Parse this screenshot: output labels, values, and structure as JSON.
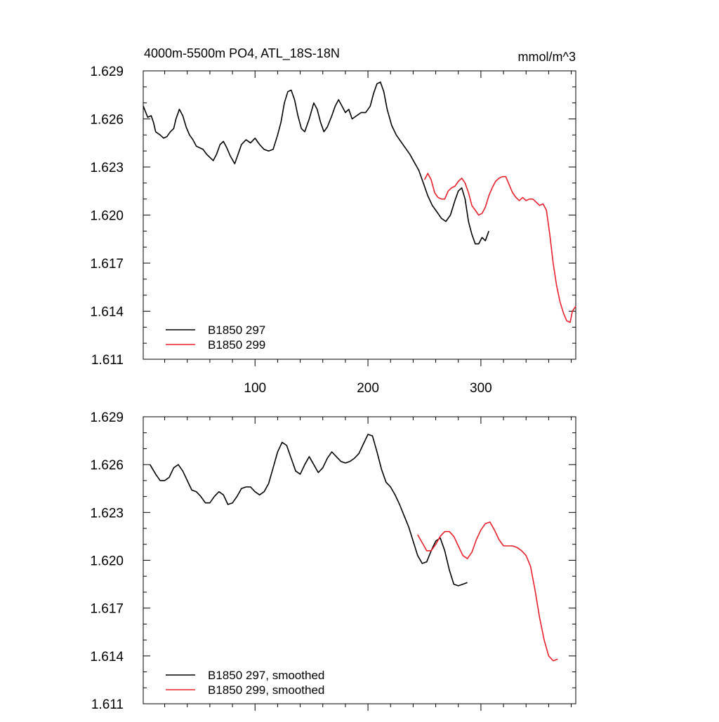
{
  "figure": {
    "title": "4000m-5500m PO4, ATL_18S-18N",
    "units": "mmol/m^3"
  },
  "chart_data": [
    {
      "type": "line",
      "title": "4000m-5500m PO4, ATL_18S-18N",
      "units": "mmol/m^3",
      "xlabel": "",
      "ylabel": "",
      "xlim": [
        1,
        384
      ],
      "ylim": [
        1.611,
        1.629
      ],
      "yticks": [
        1.611,
        1.614,
        1.617,
        1.62,
        1.623,
        1.626,
        1.629
      ],
      "ytick_labels": [
        "1.611",
        "1.614",
        "1.617",
        "1.620",
        "1.623",
        "1.626",
        "1.629"
      ],
      "xticks": [
        100,
        200,
        300
      ],
      "xtick_labels": [
        "100",
        "200",
        "300"
      ],
      "grid": false,
      "legend_position": "bottom-left",
      "series": [
        {
          "name": "B1850 297",
          "color": "#000000",
          "points": [
            [
              1,
              1.6268
            ],
            [
              5,
              1.6261
            ],
            [
              8,
              1.6262
            ],
            [
              10,
              1.6258
            ],
            [
              12,
              1.6252
            ],
            [
              14,
              1.6251
            ],
            [
              16,
              1.625
            ],
            [
              19,
              1.6248
            ],
            [
              22,
              1.6249
            ],
            [
              25,
              1.6252
            ],
            [
              28,
              1.6254
            ],
            [
              30,
              1.626
            ],
            [
              33,
              1.6266
            ],
            [
              36,
              1.6262
            ],
            [
              39,
              1.6255
            ],
            [
              42,
              1.625
            ],
            [
              45,
              1.6247
            ],
            [
              48,
              1.6243
            ],
            [
              51,
              1.6242
            ],
            [
              54,
              1.6241
            ],
            [
              57,
              1.6238
            ],
            [
              60,
              1.6236
            ],
            [
              63,
              1.6234
            ],
            [
              66,
              1.6238
            ],
            [
              69,
              1.6244
            ],
            [
              72,
              1.6246
            ],
            [
              75,
              1.6242
            ],
            [
              78,
              1.6237
            ],
            [
              82,
              1.6232
            ],
            [
              85,
              1.6238
            ],
            [
              88,
              1.6244
            ],
            [
              92,
              1.6247
            ],
            [
              96,
              1.6245
            ],
            [
              100,
              1.6248
            ],
            [
              104,
              1.6244
            ],
            [
              108,
              1.6241
            ],
            [
              112,
              1.624
            ],
            [
              116,
              1.6241
            ],
            [
              120,
              1.625
            ],
            [
              123,
              1.6258
            ],
            [
              126,
              1.627
            ],
            [
              129,
              1.6277
            ],
            [
              132,
              1.6278
            ],
            [
              135,
              1.6272
            ],
            [
              138,
              1.6262
            ],
            [
              141,
              1.6254
            ],
            [
              144,
              1.6252
            ],
            [
              148,
              1.626
            ],
            [
              152,
              1.627
            ],
            [
              155,
              1.6266
            ],
            [
              158,
              1.6258
            ],
            [
              161,
              1.6252
            ],
            [
              164,
              1.6255
            ],
            [
              168,
              1.6262
            ],
            [
              171,
              1.6268
            ],
            [
              174,
              1.6272
            ],
            [
              177,
              1.6268
            ],
            [
              180,
              1.6264
            ],
            [
              183,
              1.6266
            ],
            [
              186,
              1.626
            ],
            [
              190,
              1.6262
            ],
            [
              194,
              1.6264
            ],
            [
              198,
              1.6264
            ],
            [
              202,
              1.6268
            ],
            [
              205,
              1.6276
            ],
            [
              208,
              1.6282
            ],
            [
              211,
              1.6283
            ],
            [
              214,
              1.6277
            ],
            [
              217,
              1.6266
            ],
            [
              221,
              1.6256
            ],
            [
              225,
              1.625
            ],
            [
              229,
              1.6246
            ],
            [
              233,
              1.6242
            ],
            [
              237,
              1.6238
            ],
            [
              241,
              1.6233
            ],
            [
              245,
              1.6228
            ],
            [
              249,
              1.622
            ],
            [
              253,
              1.6212
            ],
            [
              257,
              1.6206
            ],
            [
              261,
              1.6202
            ],
            [
              265,
              1.6198
            ],
            [
              269,
              1.6196
            ],
            [
              273,
              1.62
            ],
            [
              277,
              1.6209
            ],
            [
              280,
              1.6215
            ],
            [
              283,
              1.6217
            ],
            [
              286,
              1.621
            ],
            [
              289,
              1.6196
            ],
            [
              292,
              1.6188
            ],
            [
              295,
              1.6182
            ],
            [
              298,
              1.6182
            ],
            [
              301,
              1.6186
            ],
            [
              304,
              1.6184
            ],
            [
              307,
              1.619
            ]
          ]
        },
        {
          "name": "B1850 299",
          "color": "#e8202a",
          "points": [
            [
              250,
              1.6222
            ],
            [
              253,
              1.6226
            ],
            [
              256,
              1.6222
            ],
            [
              259,
              1.6214
            ],
            [
              262,
              1.6211
            ],
            [
              265,
              1.621
            ],
            [
              268,
              1.621
            ],
            [
              271,
              1.6215
            ],
            [
              274,
              1.6217
            ],
            [
              277,
              1.6218
            ],
            [
              280,
              1.6221
            ],
            [
              283,
              1.6223
            ],
            [
              286,
              1.622
            ],
            [
              289,
              1.6214
            ],
            [
              292,
              1.6206
            ],
            [
              295,
              1.6203
            ],
            [
              298,
              1.62
            ],
            [
              301,
              1.6201
            ],
            [
              304,
              1.6205
            ],
            [
              307,
              1.6212
            ],
            [
              310,
              1.6217
            ],
            [
              313,
              1.6221
            ],
            [
              316,
              1.6223
            ],
            [
              319,
              1.6224
            ],
            [
              322,
              1.6224
            ],
            [
              325,
              1.6219
            ],
            [
              328,
              1.6214
            ],
            [
              331,
              1.6211
            ],
            [
              334,
              1.6209
            ],
            [
              337,
              1.6211
            ],
            [
              340,
              1.6209
            ],
            [
              343,
              1.621
            ],
            [
              346,
              1.621
            ],
            [
              349,
              1.6208
            ],
            [
              352,
              1.6206
            ],
            [
              355,
              1.6207
            ],
            [
              358,
              1.6203
            ],
            [
              361,
              1.6188
            ],
            [
              364,
              1.617
            ],
            [
              367,
              1.6156
            ],
            [
              370,
              1.6146
            ],
            [
              373,
              1.6139
            ],
            [
              376,
              1.6134
            ],
            [
              379,
              1.6133
            ],
            [
              381,
              1.614
            ],
            [
              384,
              1.6143
            ]
          ]
        }
      ]
    },
    {
      "type": "line",
      "title": "",
      "xlabel": "",
      "ylabel": "",
      "xlim": [
        1,
        384
      ],
      "ylim": [
        1.611,
        1.629
      ],
      "yticks": [
        1.611,
        1.614,
        1.617,
        1.62,
        1.623,
        1.626,
        1.629
      ],
      "ytick_labels": [
        "1.611",
        "1.614",
        "1.617",
        "1.620",
        "1.623",
        "1.626",
        "1.629"
      ],
      "xticks": [
        100,
        200,
        300
      ],
      "xtick_labels": [],
      "grid": false,
      "legend_position": "bottom-left",
      "series": [
        {
          "name": "B1850 297, smoothed",
          "color": "#000000",
          "points": [
            [
              7,
              1.626
            ],
            [
              12,
              1.6254
            ],
            [
              16,
              1.625
            ],
            [
              20,
              1.625
            ],
            [
              24,
              1.6252
            ],
            [
              28,
              1.6258
            ],
            [
              32,
              1.626
            ],
            [
              36,
              1.6256
            ],
            [
              40,
              1.625
            ],
            [
              44,
              1.6244
            ],
            [
              48,
              1.6243
            ],
            [
              52,
              1.624
            ],
            [
              56,
              1.6236
            ],
            [
              60,
              1.6236
            ],
            [
              64,
              1.624
            ],
            [
              68,
              1.6243
            ],
            [
              72,
              1.6241
            ],
            [
              76,
              1.6235
            ],
            [
              80,
              1.6236
            ],
            [
              84,
              1.624
            ],
            [
              88,
              1.6245
            ],
            [
              92,
              1.6246
            ],
            [
              96,
              1.6246
            ],
            [
              100,
              1.6243
            ],
            [
              104,
              1.6241
            ],
            [
              108,
              1.6243
            ],
            [
              112,
              1.6248
            ],
            [
              116,
              1.6258
            ],
            [
              120,
              1.6268
            ],
            [
              124,
              1.6274
            ],
            [
              128,
              1.6272
            ],
            [
              132,
              1.6264
            ],
            [
              136,
              1.6256
            ],
            [
              140,
              1.6254
            ],
            [
              144,
              1.626
            ],
            [
              148,
              1.6265
            ],
            [
              152,
              1.626
            ],
            [
              156,
              1.6255
            ],
            [
              160,
              1.6258
            ],
            [
              164,
              1.6264
            ],
            [
              168,
              1.6268
            ],
            [
              172,
              1.6265
            ],
            [
              176,
              1.6262
            ],
            [
              180,
              1.6261
            ],
            [
              184,
              1.6262
            ],
            [
              188,
              1.6264
            ],
            [
              192,
              1.6267
            ],
            [
              196,
              1.6273
            ],
            [
              200,
              1.6279
            ],
            [
              204,
              1.6278
            ],
            [
              208,
              1.6268
            ],
            [
              212,
              1.6257
            ],
            [
              216,
              1.6249
            ],
            [
              220,
              1.6246
            ],
            [
              224,
              1.6241
            ],
            [
              228,
              1.6235
            ],
            [
              232,
              1.6228
            ],
            [
              236,
              1.6221
            ],
            [
              240,
              1.6212
            ],
            [
              244,
              1.6203
            ],
            [
              248,
              1.6198
            ],
            [
              252,
              1.6199
            ],
            [
              256,
              1.6206
            ],
            [
              260,
              1.6212
            ],
            [
              264,
              1.6214
            ],
            [
              268,
              1.6206
            ],
            [
              272,
              1.6194
            ],
            [
              276,
              1.6185
            ],
            [
              280,
              1.6184
            ],
            [
              284,
              1.6185
            ],
            [
              288,
              1.6186
            ]
          ]
        },
        {
          "name": "B1850 299, smoothed",
          "color": "#e8202a",
          "points": [
            [
              244,
              1.6216
            ],
            [
              248,
              1.6211
            ],
            [
              252,
              1.6206
            ],
            [
              256,
              1.6206
            ],
            [
              260,
              1.621
            ],
            [
              264,
              1.6215
            ],
            [
              268,
              1.6218
            ],
            [
              272,
              1.6218
            ],
            [
              276,
              1.6215
            ],
            [
              280,
              1.6209
            ],
            [
              284,
              1.6203
            ],
            [
              288,
              1.6201
            ],
            [
              292,
              1.6205
            ],
            [
              296,
              1.6213
            ],
            [
              300,
              1.6219
            ],
            [
              304,
              1.6223
            ],
            [
              308,
              1.6224
            ],
            [
              312,
              1.6219
            ],
            [
              316,
              1.6213
            ],
            [
              320,
              1.6209
            ],
            [
              324,
              1.6209
            ],
            [
              328,
              1.6209
            ],
            [
              332,
              1.6208
            ],
            [
              336,
              1.6206
            ],
            [
              340,
              1.6203
            ],
            [
              344,
              1.6196
            ],
            [
              348,
              1.6181
            ],
            [
              352,
              1.6164
            ],
            [
              356,
              1.615
            ],
            [
              360,
              1.614
            ],
            [
              364,
              1.6137
            ],
            [
              368,
              1.6138
            ]
          ]
        }
      ]
    }
  ]
}
